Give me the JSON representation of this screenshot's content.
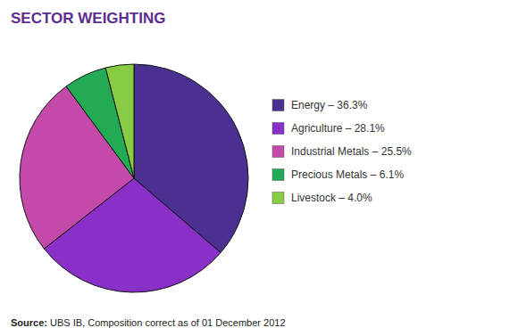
{
  "chart_data": {
    "type": "pie",
    "title": "SECTOR WEIGHTING",
    "categories": [
      "Energy – 36.3%",
      "Agriculture – 28.1%",
      "Industrial Metals – 25.5%",
      "Precious Metals – 6.1%",
      "Livestock – 4.0%"
    ],
    "values": [
      36.3,
      28.1,
      25.5,
      6.1,
      4.0
    ],
    "colors": [
      "#4a3090",
      "#8b2fc9",
      "#c44aaa",
      "#22aa55",
      "#88cc44"
    ],
    "legend": "right",
    "annotations": [
      "Source:",
      " UBS IB, Composition correct as of 01 December 2012"
    ]
  }
}
